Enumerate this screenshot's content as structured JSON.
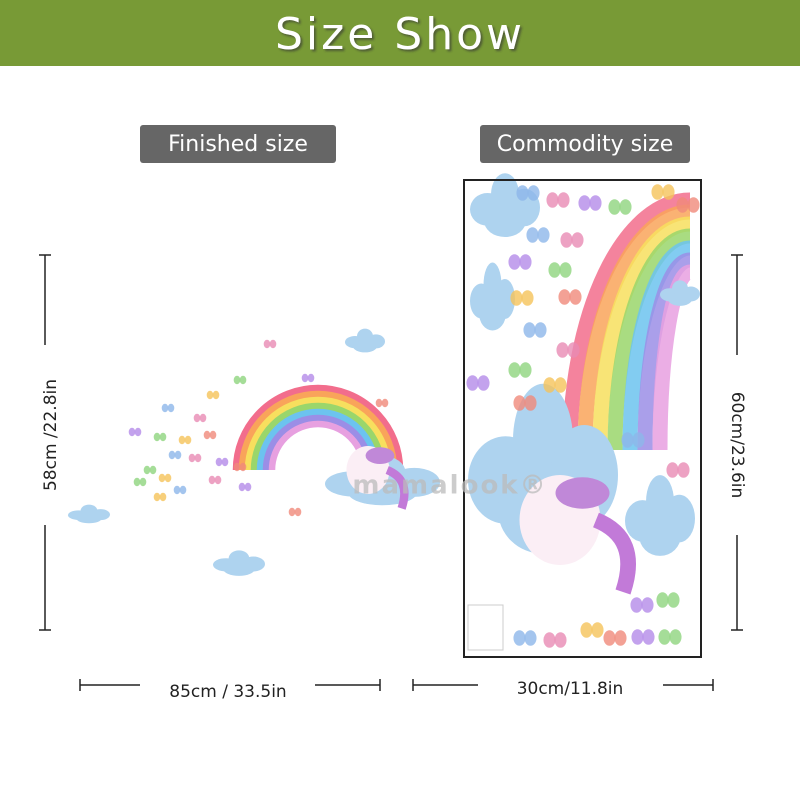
{
  "header": {
    "title": "Size Show"
  },
  "left_panel": {
    "label": "Finished size",
    "height": "58cm /22.8in",
    "width": "85cm / 33.5in",
    "watermark": "mamalook®"
  },
  "right_panel": {
    "label": "Commodity size",
    "height": "60cm/23.6in",
    "width": "30cm/11.8in"
  }
}
